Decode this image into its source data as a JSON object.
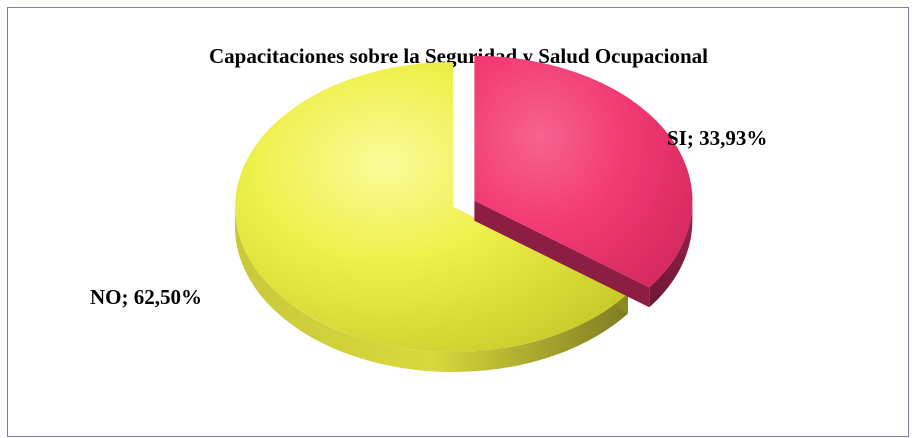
{
  "chart_data": {
    "type": "pie",
    "title": "Capacitaciones sobre la Seguridad y Salud Ocupacional",
    "slices": [
      {
        "label": "SI",
        "value": 33.93,
        "display": "SI; 33,93%",
        "color": "#f23a72",
        "side_color": "#8e1d44"
      },
      {
        "label": "NO",
        "value": 62.5,
        "display": "NO; 62,50%",
        "color": "#eef04a",
        "side_color": "#8f8d25"
      }
    ],
    "exploded": "SI",
    "style": "3d"
  }
}
